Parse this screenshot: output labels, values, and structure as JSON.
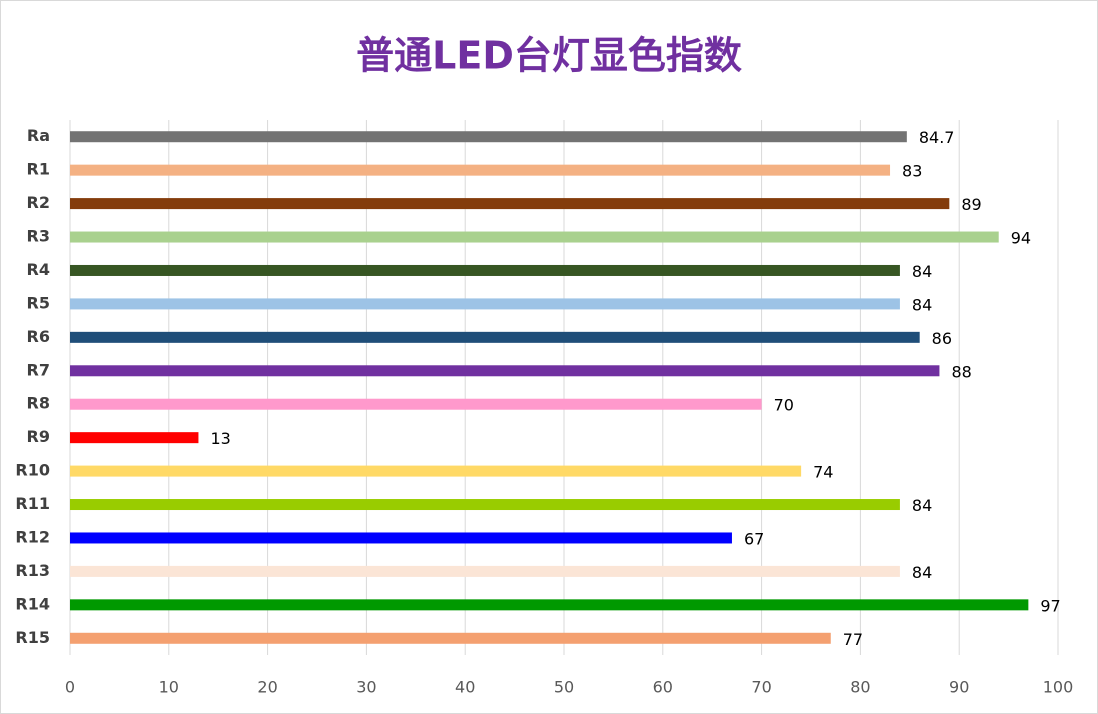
{
  "chart_data": {
    "type": "bar",
    "orientation": "horizontal",
    "title": "普通LED台灯显色指数",
    "categories": [
      "Ra",
      "R1",
      "R2",
      "R3",
      "R4",
      "R5",
      "R6",
      "R7",
      "R8",
      "R9",
      "R10",
      "R11",
      "R12",
      "R13",
      "R14",
      "R15"
    ],
    "values": [
      84.7,
      83,
      89,
      94,
      84,
      84,
      86,
      88,
      70,
      13,
      74,
      84,
      67,
      84,
      97,
      77
    ],
    "colors": [
      "#737373",
      "#f4b183",
      "#843c0c",
      "#a9d18e",
      "#375623",
      "#9dc3e6",
      "#1f4e79",
      "#7030a0",
      "#ff99cc",
      "#ff0000",
      "#ffd966",
      "#99cc00",
      "#0000ff",
      "#fbe5d6",
      "#009900",
      "#f4a070"
    ],
    "xlim": [
      0,
      100
    ],
    "xticks": [
      0,
      10,
      20,
      30,
      40,
      50,
      60,
      70,
      80,
      90,
      100
    ],
    "grid": true
  }
}
